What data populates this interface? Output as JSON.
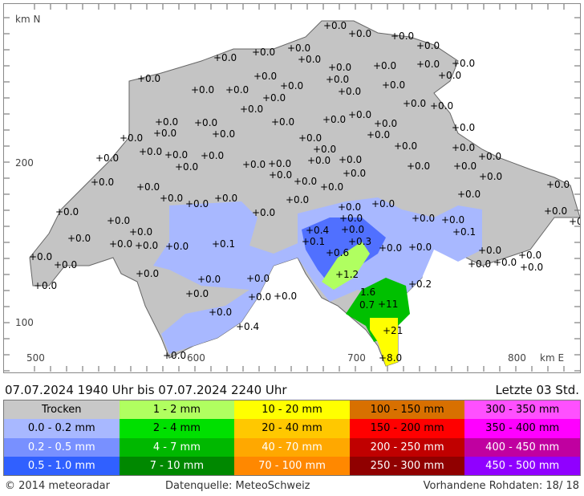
{
  "map": {
    "axis": {
      "north_label": "km N",
      "east_label": "km E",
      "y_ticks": [
        "200",
        "100"
      ],
      "x_ticks": [
        "500",
        "600",
        "700",
        "800"
      ]
    },
    "stations": [
      "+0.0",
      "+0.0",
      "+0.0",
      "+0.0",
      "+0.0",
      "+0.0",
      "+0.0",
      "+0.0",
      "+0.0",
      "+0.0",
      "+0.0",
      "+0.0",
      "+0.0",
      "+0.0",
      "+0.0",
      "+0.0",
      "+0.0",
      "+0.0",
      "+0.0",
      "+0.0",
      "+0.0",
      "+0.0",
      "+0.0",
      "+0.0",
      "+0.0",
      "+0.0",
      "+0.0",
      "+0.0",
      "+0.0",
      "+0.0",
      "+0.0",
      "+0.0",
      "+0.0",
      "+0.0",
      "+0.0",
      "+0.0",
      "+0.0",
      "+0.0",
      "+0.0",
      "+0.0",
      "+0.0",
      "+0.0",
      "+0.0",
      "+0.0",
      "+0.0",
      "+0.0",
      "+0.0",
      "+0.0",
      "+0.0",
      "+0.0",
      "+0.0",
      "+0.0",
      "+0.0",
      "+0.0",
      "+0.0",
      "+0.0",
      "+0.0",
      "+0.0",
      "+0.0",
      "+0.0",
      "+0.0",
      "+0.0",
      "+0.0",
      "+0.0",
      "+0.0",
      "+0.0",
      "+0.0",
      "+0.0",
      "+0.0",
      "+0.0",
      "+0.0",
      "+0.0",
      "+0.0",
      "+0.0",
      "+0.0",
      "+0.0",
      "+0.4",
      "+0.1",
      "+0.0",
      "+0.0",
      "+0.1",
      "+0.3",
      "+0.0",
      "+0.0",
      "+0.0",
      "+0.1",
      "+0.0",
      "+0.0",
      "+0.0",
      "+0.0",
      "+0.0",
      "+0.0",
      "+0.0",
      "+0.0",
      "+0.0",
      "+0.6",
      "+1.2",
      "+0.0",
      "+0.0",
      "+0.0",
      "+0.2",
      "1.6",
      "+0.0",
      "+0.0",
      "+0.0",
      "+0.0",
      "0.7",
      "+11",
      "+0.0",
      "+0.4",
      "+21",
      "+0.0",
      "+8.0"
    ]
  },
  "header": {
    "period": "07.07.2024  1940  Uhr   bis   07.07.2024  2240  Uhr",
    "window": "Letzte 03 Std."
  },
  "legend": [
    {
      "label": "Trocken",
      "color": "#c8c8c8",
      "text": "#000"
    },
    {
      "label": "1 - 2 mm",
      "color": "#b0ff60",
      "text": "#000"
    },
    {
      "label": "10 - 20 mm",
      "color": "#ffff00",
      "text": "#000"
    },
    {
      "label": "100 - 150 mm",
      "color": "#d87000",
      "text": "#000"
    },
    {
      "label": "300 - 350 mm",
      "color": "#ff50ff",
      "text": "#000"
    },
    {
      "label": "0.0 - 0.2 mm",
      "color": "#a8b8ff",
      "text": "#000"
    },
    {
      "label": "2 - 4 mm",
      "color": "#00e000",
      "text": "#000"
    },
    {
      "label": "20 - 40 mm",
      "color": "#ffc800",
      "text": "#000"
    },
    {
      "label": "150 - 200 mm",
      "color": "#ff0000",
      "text": "#000"
    },
    {
      "label": "350 - 400 mm",
      "color": "#ff00ff",
      "text": "#000"
    },
    {
      "label": "0.2 - 0.5 mm",
      "color": "#7890ff",
      "text": "#fff"
    },
    {
      "label": "4 - 7 mm",
      "color": "#00b800",
      "text": "#fff"
    },
    {
      "label": "40 - 70 mm",
      "color": "#ffa800",
      "text": "#fff"
    },
    {
      "label": "200 - 250 mm",
      "color": "#c00000",
      "text": "#fff"
    },
    {
      "label": "400 - 450 mm",
      "color": "#c000a0",
      "text": "#fff"
    },
    {
      "label": "0.5 - 1.0 mm",
      "color": "#3060ff",
      "text": "#fff"
    },
    {
      "label": "7 - 10 mm",
      "color": "#008800",
      "text": "#fff"
    },
    {
      "label": "70 - 100 mm",
      "color": "#ff8800",
      "text": "#fff"
    },
    {
      "label": "250 - 300 mm",
      "color": "#900000",
      "text": "#fff"
    },
    {
      "label": "450 - 500 mm",
      "color": "#9000ff",
      "text": "#fff"
    }
  ],
  "footer": {
    "copyright": "© 2014  meteoradar",
    "source": "Datenquelle: MeteoSchweiz",
    "raw": "Vorhandene Rohdaten:  18/ 18"
  }
}
